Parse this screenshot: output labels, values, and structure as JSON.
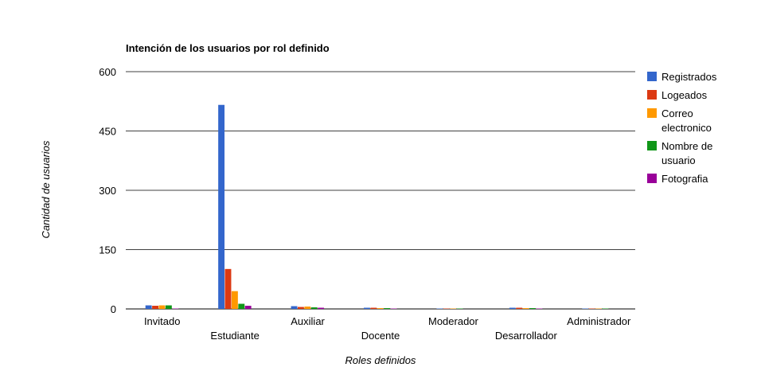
{
  "chart_data": {
    "type": "bar",
    "title": "Intención de los usuarios por rol definido",
    "xlabel": "Roles definidos",
    "ylabel": "Cantidad de usuarios",
    "ylim": [
      0,
      600
    ],
    "yticks": [
      0,
      150,
      300,
      450,
      600
    ],
    "grid": true,
    "legend_position": "right",
    "categories": [
      "Invitado",
      "Estudiante",
      "Auxiliar",
      "Docente",
      "Moderador",
      "Desarrollador",
      "Administrador"
    ],
    "series": [
      {
        "name": "Registrados",
        "color": "#3366cc",
        "values": [
          9,
          516,
          7,
          3,
          1,
          3,
          1
        ]
      },
      {
        "name": "Logeados",
        "color": "#dc3912",
        "values": [
          8,
          101,
          5,
          3,
          1,
          3,
          1
        ]
      },
      {
        "name": "Correo electronico",
        "color": "#ff9900",
        "values": [
          9,
          45,
          6,
          2,
          1,
          2,
          1
        ]
      },
      {
        "name": "Nombre de usuario",
        "color": "#109618",
        "values": [
          9,
          13,
          4,
          2,
          1,
          2,
          1
        ]
      },
      {
        "name": "Fotografia",
        "color": "#990099",
        "values": [
          1,
          8,
          3,
          1,
          0,
          1,
          0
        ]
      }
    ]
  }
}
